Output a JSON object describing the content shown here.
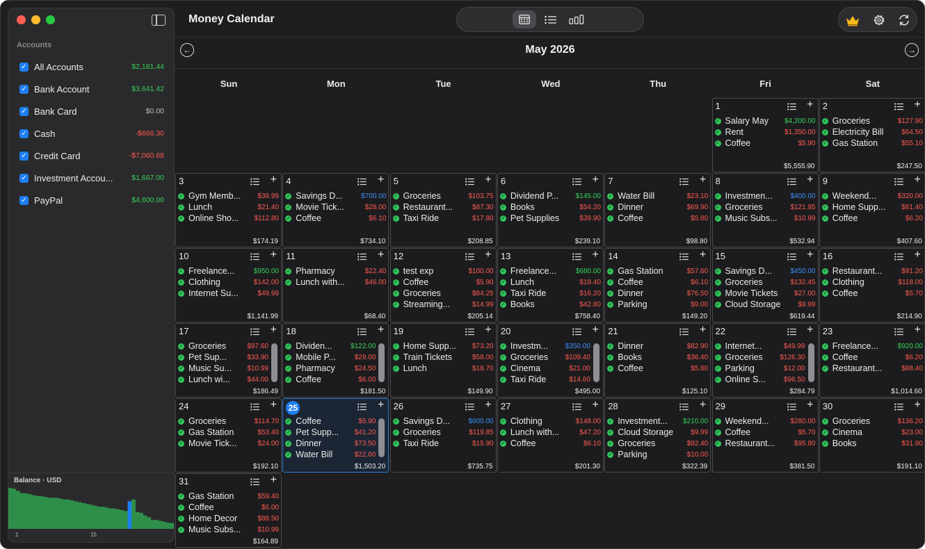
{
  "app": {
    "title": "Money Calendar"
  },
  "sidebar": {
    "accounts_header": "Accounts",
    "accounts": [
      {
        "name": "All Accounts",
        "amount": "$2,181.44",
        "tone": "pos"
      },
      {
        "name": "Bank Account",
        "amount": "$3,641.42",
        "tone": "pos"
      },
      {
        "name": "Bank Card",
        "amount": "$0.00",
        "tone": "zero"
      },
      {
        "name": "Cash",
        "amount": "-$666.30",
        "tone": "neg"
      },
      {
        "name": "Credit Card",
        "amount": "-$7,060.68",
        "tone": "neg"
      },
      {
        "name": "Investment Accou...",
        "amount": "$1,667.00",
        "tone": "pos"
      },
      {
        "name": "PayPal",
        "amount": "$4,600.00",
        "tone": "pos"
      }
    ],
    "balance": {
      "title": "Balance · USD",
      "axis_labels": [
        "1",
        "15"
      ],
      "levels": [
        0.92,
        0.9,
        0.85,
        0.8,
        0.8,
        0.78,
        0.76,
        0.74,
        0.74,
        0.72,
        0.7,
        0.7,
        0.7,
        0.68,
        0.66,
        0.66,
        0.64,
        0.62,
        0.6,
        0.58,
        0.56,
        0.54,
        0.52,
        0.5,
        0.5,
        0.48,
        0.46,
        0.46,
        0.44,
        0.42,
        0.4,
        0.62,
        0.66,
        0.38,
        0.36,
        0.3,
        0.26,
        0.2,
        0.2,
        0.18,
        0.16,
        0.14,
        0.13
      ],
      "highlight_index": 31
    }
  },
  "toolbar": {
    "views": [
      {
        "name": "calendar-view-icon",
        "active": true
      },
      {
        "name": "list-view-icon",
        "active": false
      },
      {
        "name": "chart-view-icon",
        "active": false
      }
    ],
    "right_icons": [
      "crown-icon",
      "settings-icon",
      "sync-icon"
    ]
  },
  "calendar": {
    "month_title": "May 2026",
    "weekdays": [
      "Sun",
      "Mon",
      "Tue",
      "Wed",
      "Thu",
      "Fri",
      "Sat"
    ],
    "first_weekday_index": 5,
    "today": 25,
    "days": [
      {
        "day": 1,
        "total": "$5,555.90",
        "tx": [
          [
            "Salary May",
            "$4,200.00",
            "pos"
          ],
          [
            "Rent",
            "$1,350.00",
            "neg"
          ],
          [
            "Coffee",
            "$5.90",
            "neg"
          ]
        ]
      },
      {
        "day": 2,
        "total": "$247.50",
        "tx": [
          [
            "Groceries",
            "$127.90",
            "neg"
          ],
          [
            "Electricity Bill",
            "$64.50",
            "neg"
          ],
          [
            "Gas Station",
            "$55.10",
            "neg"
          ]
        ]
      },
      {
        "day": 3,
        "total": "$174.19",
        "tx": [
          [
            "Gym Memb...",
            "$39.99",
            "neg"
          ],
          [
            "Lunch",
            "$21.40",
            "neg"
          ],
          [
            "Online Sho...",
            "$112.80",
            "neg"
          ]
        ]
      },
      {
        "day": 4,
        "total": "$734.10",
        "tx": [
          [
            "Savings D...",
            "$700.00",
            "transfer"
          ],
          [
            "Movie Tick...",
            "$28.00",
            "neg"
          ],
          [
            "Coffee",
            "$6.10",
            "neg"
          ]
        ]
      },
      {
        "day": 5,
        "total": "$208.85",
        "tx": [
          [
            "Groceries",
            "$103.75",
            "neg"
          ],
          [
            "Restaurant...",
            "$87.30",
            "neg"
          ],
          [
            "Taxi Ride",
            "$17.80",
            "neg"
          ]
        ]
      },
      {
        "day": 6,
        "total": "$239.10",
        "tx": [
          [
            "Dividend P...",
            "$145.00",
            "pos"
          ],
          [
            "Books",
            "$54.20",
            "neg"
          ],
          [
            "Pet Supplies",
            "$39.90",
            "neg"
          ]
        ]
      },
      {
        "day": 7,
        "total": "$98.80",
        "tx": [
          [
            "Water Bill",
            "$23.10",
            "neg"
          ],
          [
            "Dinner",
            "$69.90",
            "neg"
          ],
          [
            "Coffee",
            "$5.80",
            "neg"
          ]
        ]
      },
      {
        "day": 8,
        "total": "$532.94",
        "tx": [
          [
            "Investmen...",
            "$400.00",
            "transfer"
          ],
          [
            "Groceries",
            "$121.95",
            "neg"
          ],
          [
            "Music Subs...",
            "$10.99",
            "neg"
          ]
        ]
      },
      {
        "day": 9,
        "total": "$407.60",
        "tx": [
          [
            "Weekend...",
            "$320.00",
            "neg"
          ],
          [
            "Home Supp...",
            "$81.40",
            "neg"
          ],
          [
            "Coffee",
            "$6.20",
            "neg"
          ]
        ]
      },
      {
        "day": 10,
        "total": "$1,141.99",
        "tx": [
          [
            "Freelance...",
            "$950.00",
            "pos"
          ],
          [
            "Clothing",
            "$142.00",
            "neg"
          ],
          [
            "Internet Su...",
            "$49.99",
            "neg"
          ]
        ]
      },
      {
        "day": 11,
        "total": "$68.40",
        "tx": [
          [
            "Pharmacy",
            "$22.40",
            "neg"
          ],
          [
            "Lunch with...",
            "$46.00",
            "neg"
          ]
        ]
      },
      {
        "day": 12,
        "total": "$205.14",
        "tx": [
          [
            "test exp",
            "$100.00",
            "neg"
          ],
          [
            "Coffee",
            "$5.90",
            "neg"
          ],
          [
            "Groceries",
            "$84.25",
            "neg"
          ],
          [
            "Streaming...",
            "$14.99",
            "neg"
          ]
        ]
      },
      {
        "day": 13,
        "total": "$758.40",
        "tx": [
          [
            "Freelance...",
            "$680.00",
            "pos"
          ],
          [
            "Lunch",
            "$19.40",
            "neg"
          ],
          [
            "Taxi Ride",
            "$16.20",
            "neg"
          ],
          [
            "Books",
            "$42.80",
            "neg"
          ]
        ]
      },
      {
        "day": 14,
        "total": "$149.20",
        "tx": [
          [
            "Gas Station",
            "$57.60",
            "neg"
          ],
          [
            "Coffee",
            "$6.10",
            "neg"
          ],
          [
            "Dinner",
            "$76.50",
            "neg"
          ],
          [
            "Parking",
            "$9.00",
            "neg"
          ]
        ]
      },
      {
        "day": 15,
        "total": "$619.44",
        "tx": [
          [
            "Savings D...",
            "$450.00",
            "transfer"
          ],
          [
            "Groceries",
            "$132.45",
            "neg"
          ],
          [
            "Movie Tickets",
            "$27.00",
            "neg"
          ],
          [
            "Cloud Storage",
            "$9.99",
            "neg"
          ]
        ]
      },
      {
        "day": 16,
        "total": "$214.90",
        "tx": [
          [
            "Restaurant...",
            "$91.20",
            "neg"
          ],
          [
            "Clothing",
            "$118.00",
            "neg"
          ],
          [
            "Coffee",
            "$5.70",
            "neg"
          ]
        ]
      },
      {
        "day": 17,
        "total": "$186.49",
        "scroll": true,
        "tx": [
          [
            "Groceries",
            "$97.60",
            "neg"
          ],
          [
            "Pet Sup...",
            "$33.90",
            "neg"
          ],
          [
            "Music Su...",
            "$10.99",
            "neg"
          ],
          [
            "Lunch wi...",
            "$44.00",
            "neg"
          ]
        ]
      },
      {
        "day": 18,
        "total": "$181.50",
        "scroll": true,
        "tx": [
          [
            "Dividen...",
            "$122.00",
            "pos"
          ],
          [
            "Mobile P...",
            "$29.00",
            "neg"
          ],
          [
            "Pharmacy",
            "$24.50",
            "neg"
          ],
          [
            "Coffee",
            "$6.00",
            "neg"
          ]
        ]
      },
      {
        "day": 19,
        "total": "$149.90",
        "tx": [
          [
            "Home Supp...",
            "$73.20",
            "neg"
          ],
          [
            "Train Tickets",
            "$58.00",
            "neg"
          ],
          [
            "Lunch",
            "$18.70",
            "neg"
          ]
        ]
      },
      {
        "day": 20,
        "total": "$495.00",
        "scroll": true,
        "tx": [
          [
            "Investm...",
            "$350.00",
            "transfer"
          ],
          [
            "Groceries",
            "$109.40",
            "neg"
          ],
          [
            "Cinema",
            "$21.00",
            "neg"
          ],
          [
            "Taxi Ride",
            "$14.60",
            "neg"
          ]
        ]
      },
      {
        "day": 21,
        "total": "$125.10",
        "tx": [
          [
            "Dinner",
            "$82.90",
            "neg"
          ],
          [
            "Books",
            "$36.40",
            "neg"
          ],
          [
            "Coffee",
            "$5.80",
            "neg"
          ]
        ]
      },
      {
        "day": 22,
        "total": "$284.79",
        "scroll": true,
        "tx": [
          [
            "Internet...",
            "$49.99",
            "neg"
          ],
          [
            "Groceries",
            "$126.30",
            "neg"
          ],
          [
            "Parking",
            "$12.00",
            "neg"
          ],
          [
            "Online S...",
            "$96.50",
            "neg"
          ]
        ]
      },
      {
        "day": 23,
        "total": "$1,014.60",
        "tx": [
          [
            "Freelance...",
            "$920.00",
            "pos"
          ],
          [
            "Coffee",
            "$6.20",
            "neg"
          ],
          [
            "Restaurant...",
            "$88.40",
            "neg"
          ]
        ]
      },
      {
        "day": 24,
        "total": "$192.10",
        "tx": [
          [
            "Groceries",
            "$114.70",
            "neg"
          ],
          [
            "Gas Station",
            "$53.40",
            "neg"
          ],
          [
            "Movie Tick...",
            "$24.00",
            "neg"
          ]
        ]
      },
      {
        "day": 25,
        "total": "$1,503.20",
        "scroll": true,
        "tx": [
          [
            "Coffee",
            "$5.90",
            "neg"
          ],
          [
            "Pet Supp...",
            "$41.20",
            "neg"
          ],
          [
            "Dinner",
            "$73.50",
            "neg"
          ],
          [
            "Water Bill",
            "$22.60",
            "neg"
          ]
        ]
      },
      {
        "day": 26,
        "total": "$735.75",
        "tx": [
          [
            "Savings D...",
            "$600.00",
            "transfer"
          ],
          [
            "Groceries",
            "$119.85",
            "neg"
          ],
          [
            "Taxi Ride",
            "$15.90",
            "neg"
          ]
        ]
      },
      {
        "day": 27,
        "total": "$201.30",
        "tx": [
          [
            "Clothing",
            "$148.00",
            "neg"
          ],
          [
            "Lunch with...",
            "$47.20",
            "neg"
          ],
          [
            "Coffee",
            "$6.10",
            "neg"
          ]
        ]
      },
      {
        "day": 28,
        "total": "$322.39",
        "tx": [
          [
            "Investment...",
            "$210.00",
            "pos"
          ],
          [
            "Cloud Storage",
            "$9.99",
            "neg"
          ],
          [
            "Groceries",
            "$92.40",
            "neg"
          ],
          [
            "Parking",
            "$10.00",
            "neg"
          ]
        ]
      },
      {
        "day": 29,
        "total": "$381.50",
        "tx": [
          [
            "Weekend...",
            "$280.00",
            "neg"
          ],
          [
            "Coffee",
            "$5.70",
            "neg"
          ],
          [
            "Restaurant...",
            "$95.80",
            "neg"
          ]
        ]
      },
      {
        "day": 30,
        "total": "$191.10",
        "tx": [
          [
            "Groceries",
            "$136.20",
            "neg"
          ],
          [
            "Cinema",
            "$23.00",
            "neg"
          ],
          [
            "Books",
            "$31.90",
            "neg"
          ]
        ]
      },
      {
        "day": 31,
        "total": "$164.89",
        "tx": [
          [
            "Gas Station",
            "$59.40",
            "neg"
          ],
          [
            "Coffee",
            "$6.00",
            "neg"
          ],
          [
            "Home Decor",
            "$88.50",
            "neg"
          ],
          [
            "Music Subs...",
            "$10.99",
            "neg"
          ]
        ]
      }
    ]
  },
  "colors": {
    "accent": "#1f7ff2",
    "positive": "#37d35a",
    "negative": "#ff5a52",
    "transfer": "#3a8ef6",
    "balance_bar": "#2e8f4a",
    "balance_highlight": "#1f7ff2"
  }
}
